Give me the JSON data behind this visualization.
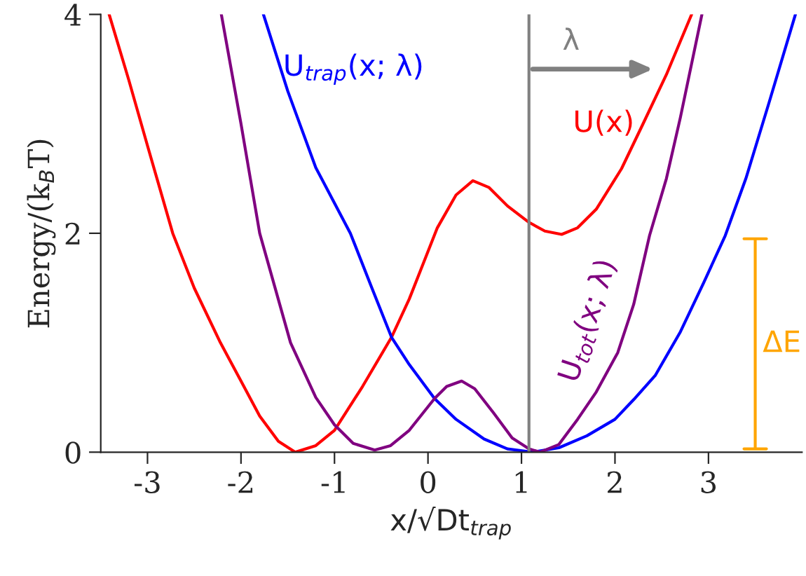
{
  "chart_data": {
    "type": "line",
    "xlabel": "x/√Dt$_{trap}$",
    "ylabel": "Energy/(k$_{B}$T)",
    "xlim": [
      -3.5,
      4
    ],
    "ylim": [
      0,
      4
    ],
    "xticks": [
      -3,
      -2,
      -1,
      0,
      1,
      2,
      3
    ],
    "yticks": [
      0,
      2,
      4
    ],
    "grid": false,
    "legend": false,
    "marker": "none",
    "line_style": "solid",
    "series": [
      {
        "name": "U(x)",
        "color": "#ff0000",
        "x": [
          -3.41,
          -3.2,
          -3.0,
          -2.73,
          -2.5,
          -2.22,
          -2.0,
          -1.8,
          -1.6,
          -1.42,
          -1.2,
          -1.0,
          -0.7,
          -0.39,
          -0.2,
          -0.08,
          0.1,
          0.3,
          0.48,
          0.65,
          0.85,
          1.08,
          1.25,
          1.43,
          1.6,
          1.8,
          2.07,
          2.3,
          2.55,
          2.82
        ],
        "values": [
          4,
          3.4,
          2.8,
          2.0,
          1.5,
          1.0,
          0.65,
          0.33,
          0.1,
          0.0,
          0.06,
          0.2,
          0.6,
          1.05,
          1.4,
          1.66,
          2.05,
          2.35,
          2.48,
          2.42,
          2.25,
          2.1,
          2.02,
          1.99,
          2.05,
          2.22,
          2.59,
          3.0,
          3.45,
          4
        ]
      },
      {
        "name": "U$_{trap}$(x; λ)",
        "color": "#0000ff",
        "x": [
          -1.76,
          -1.5,
          -1.2,
          -0.83,
          -0.6,
          -0.39,
          -0.2,
          0.07,
          0.3,
          0.6,
          0.85,
          1.12,
          1.4,
          1.7,
          2.0,
          2.2,
          2.43,
          2.7,
          2.95,
          3.18,
          3.4,
          3.65,
          3.93
        ],
        "values": [
          4,
          3.3,
          2.6,
          2.0,
          1.5,
          1.05,
          0.8,
          0.49,
          0.3,
          0.12,
          0.03,
          0.0,
          0.04,
          0.15,
          0.3,
          0.48,
          0.7,
          1.1,
          1.55,
          1.98,
          2.5,
          3.2,
          4
        ]
      },
      {
        "name": "U$_{tot}$(x; λ)",
        "color": "#800080",
        "x": [
          -2.21,
          -2.0,
          -1.8,
          -1.47,
          -1.2,
          -1.0,
          -0.8,
          -0.57,
          -0.4,
          -0.2,
          0.07,
          0.2,
          0.36,
          0.5,
          0.7,
          0.9,
          1.08,
          1.2,
          1.4,
          1.6,
          1.8,
          2.03,
          2.2,
          2.37,
          2.55,
          2.7,
          2.93
        ],
        "values": [
          4,
          3.0,
          2.0,
          1.0,
          0.5,
          0.25,
          0.08,
          0.02,
          0.06,
          0.2,
          0.49,
          0.6,
          0.65,
          0.58,
          0.36,
          0.13,
          0.03,
          0.0,
          0.07,
          0.3,
          0.55,
          0.91,
          1.35,
          1.98,
          2.5,
          3.06,
          4
        ]
      },
      {
        "name": "ΔE",
        "color": "#ffa500",
        "x": [
          3.38,
          3.62,
          3.5,
          3.5,
          3.38,
          3.62
        ],
        "values": [
          0.03,
          0.03,
          0.03,
          1.95,
          1.95,
          1.95
        ]
      }
    ],
    "ref_lines": [
      {
        "axis": "x",
        "value": 1.08,
        "color": "#808080"
      }
    ],
    "annotations": [
      {
        "text": "λ",
        "x": 1.08,
        "y": 3.5
      }
    ]
  }
}
